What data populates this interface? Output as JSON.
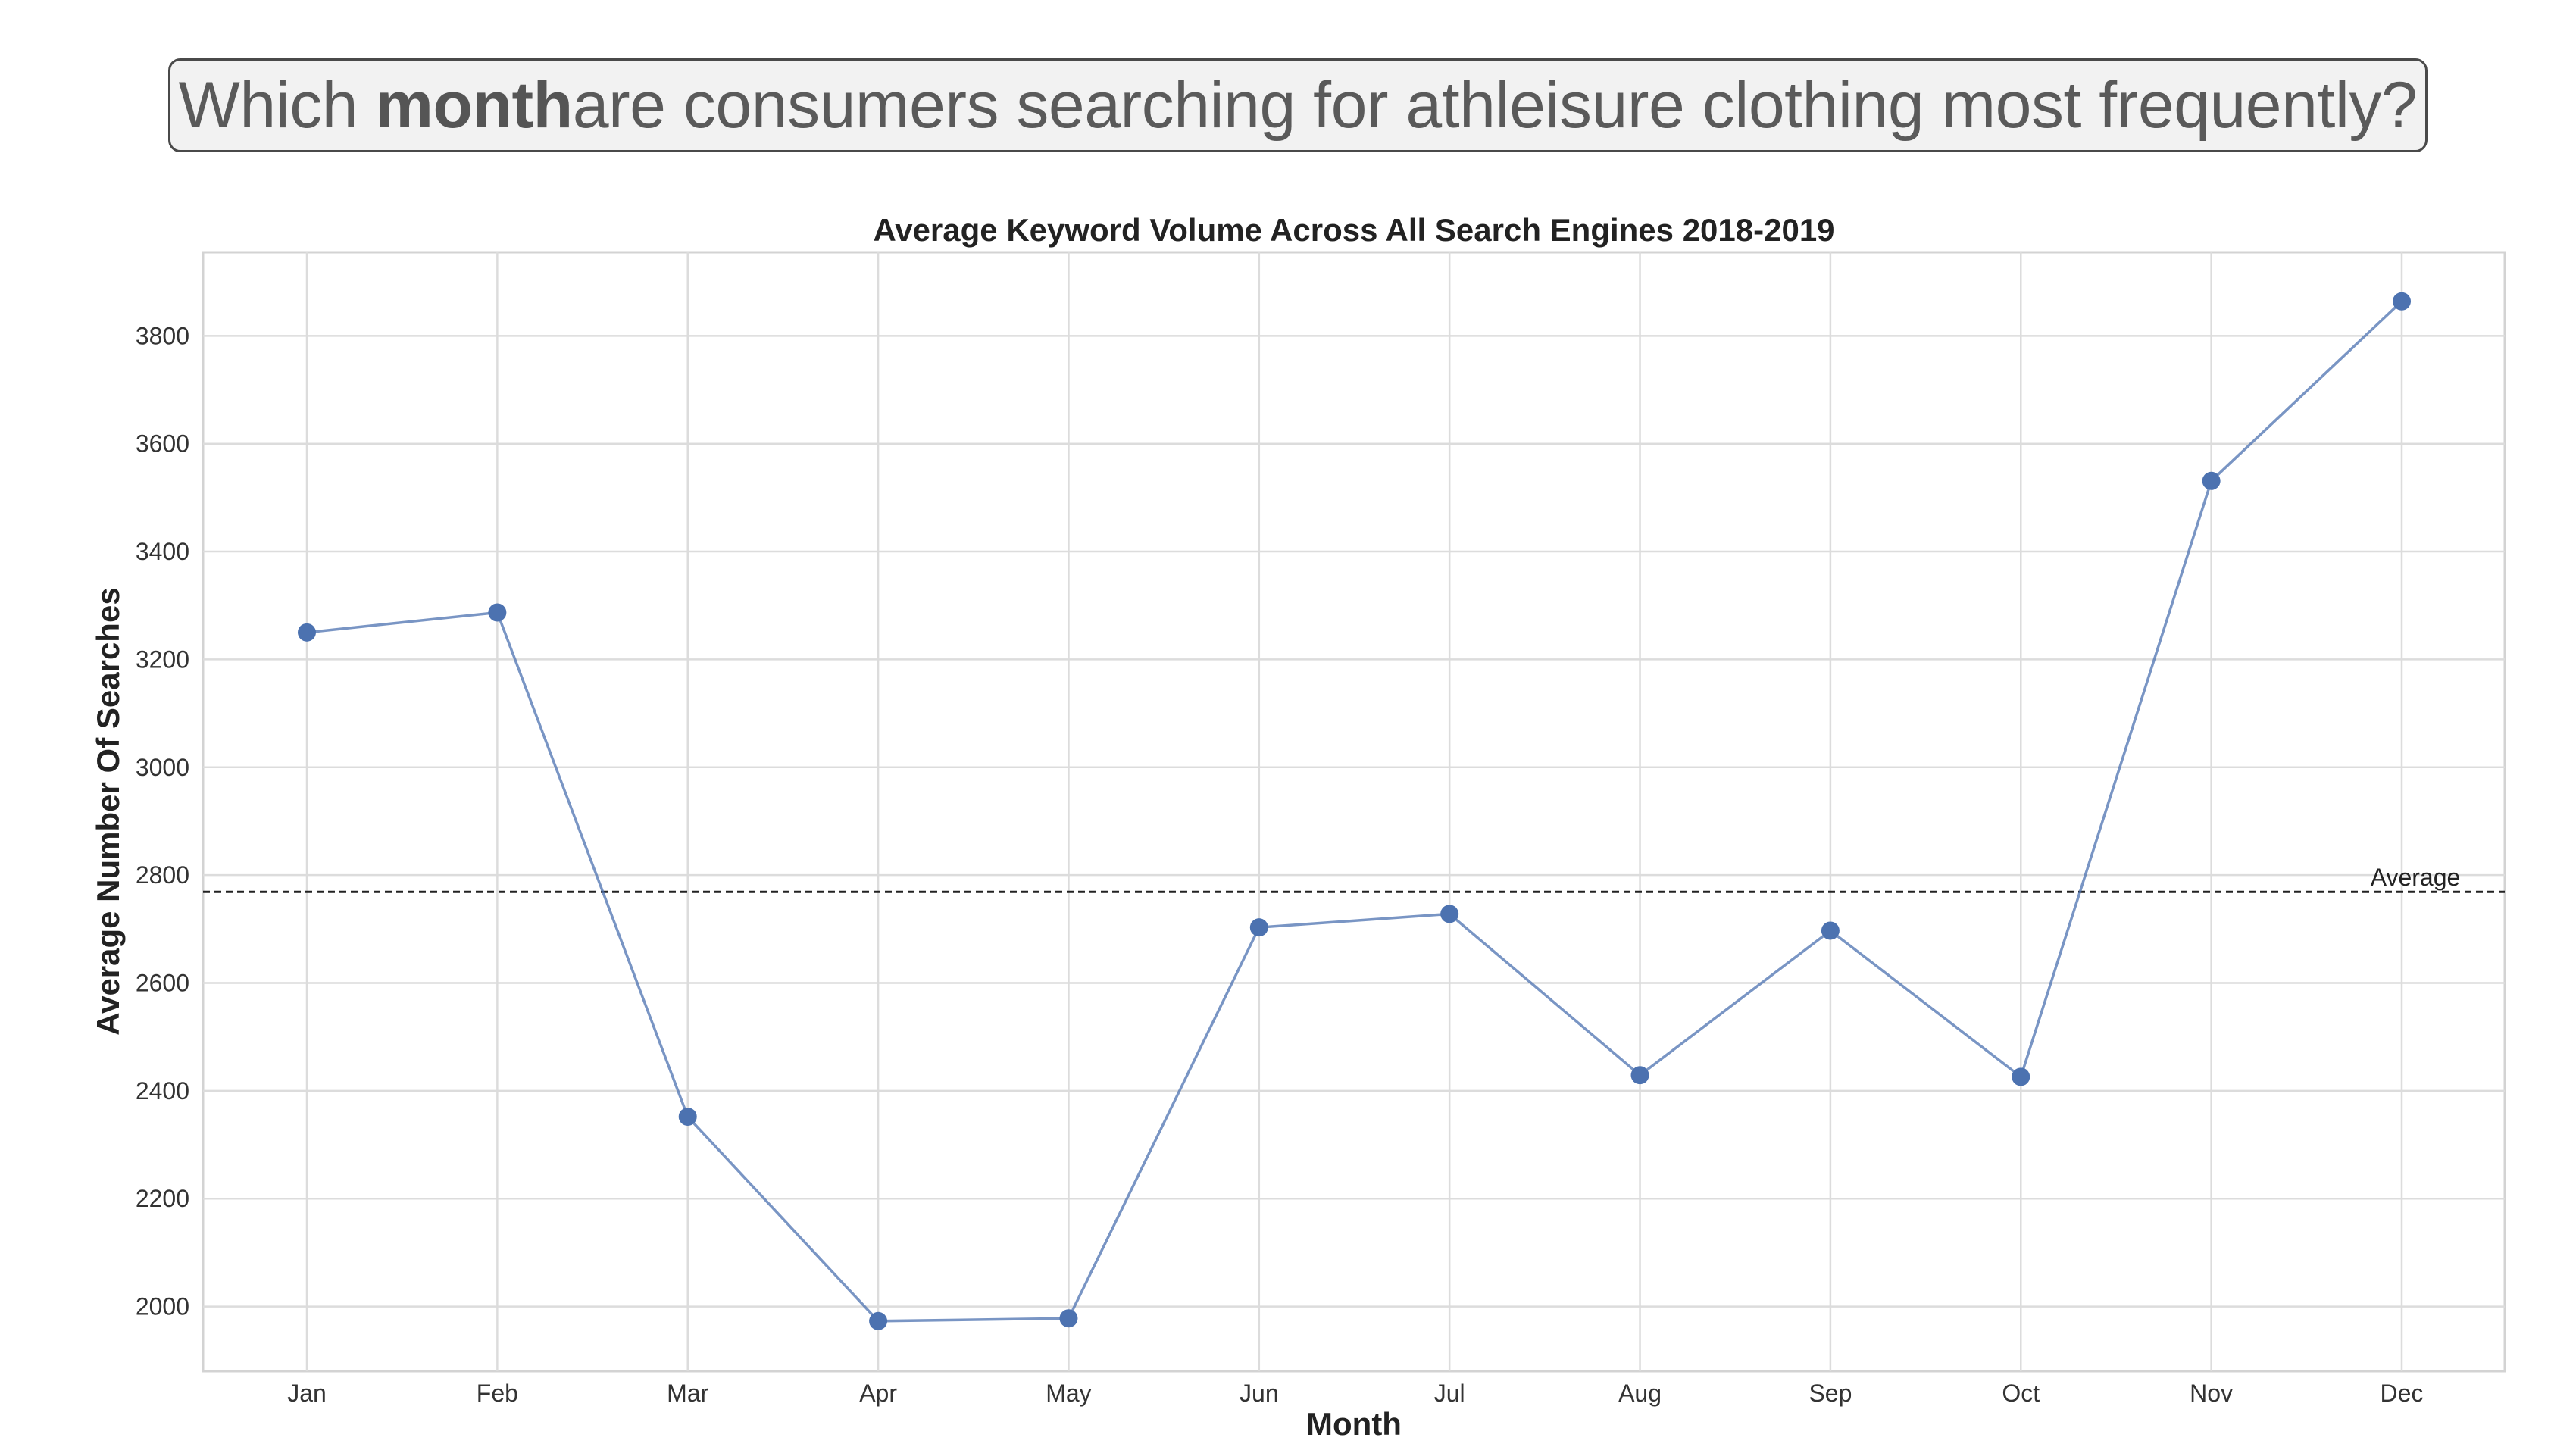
{
  "question": {
    "prefix": "Which ",
    "emphasis": "month",
    "suffix": " are consumers searching for athleisure clothing most frequently?"
  },
  "chart_data": {
    "type": "line",
    "title": "Average Keyword Volume Across All Search Engines 2018-2019",
    "xlabel": "Month",
    "ylabel": "Average Number Of Searches",
    "categories": [
      "Jan",
      "Feb",
      "Mar",
      "Apr",
      "May",
      "Jun",
      "Jul",
      "Aug",
      "Sep",
      "Oct",
      "Nov",
      "Dec"
    ],
    "series": [
      {
        "values": [
          3250,
          3287,
          2352,
          1973,
          1978,
          2703,
          2728,
          2429,
          2697,
          2426,
          3531,
          3864
        ],
        "color": "#4c72b0"
      }
    ],
    "yticks": [
      2000,
      2200,
      2400,
      2600,
      2800,
      3000,
      3200,
      3400,
      3600,
      3800
    ],
    "ylim": [
      1880,
      3955
    ],
    "reference_line": {
      "label": "Average",
      "value": 2769
    },
    "grid": true,
    "legend": "none"
  }
}
